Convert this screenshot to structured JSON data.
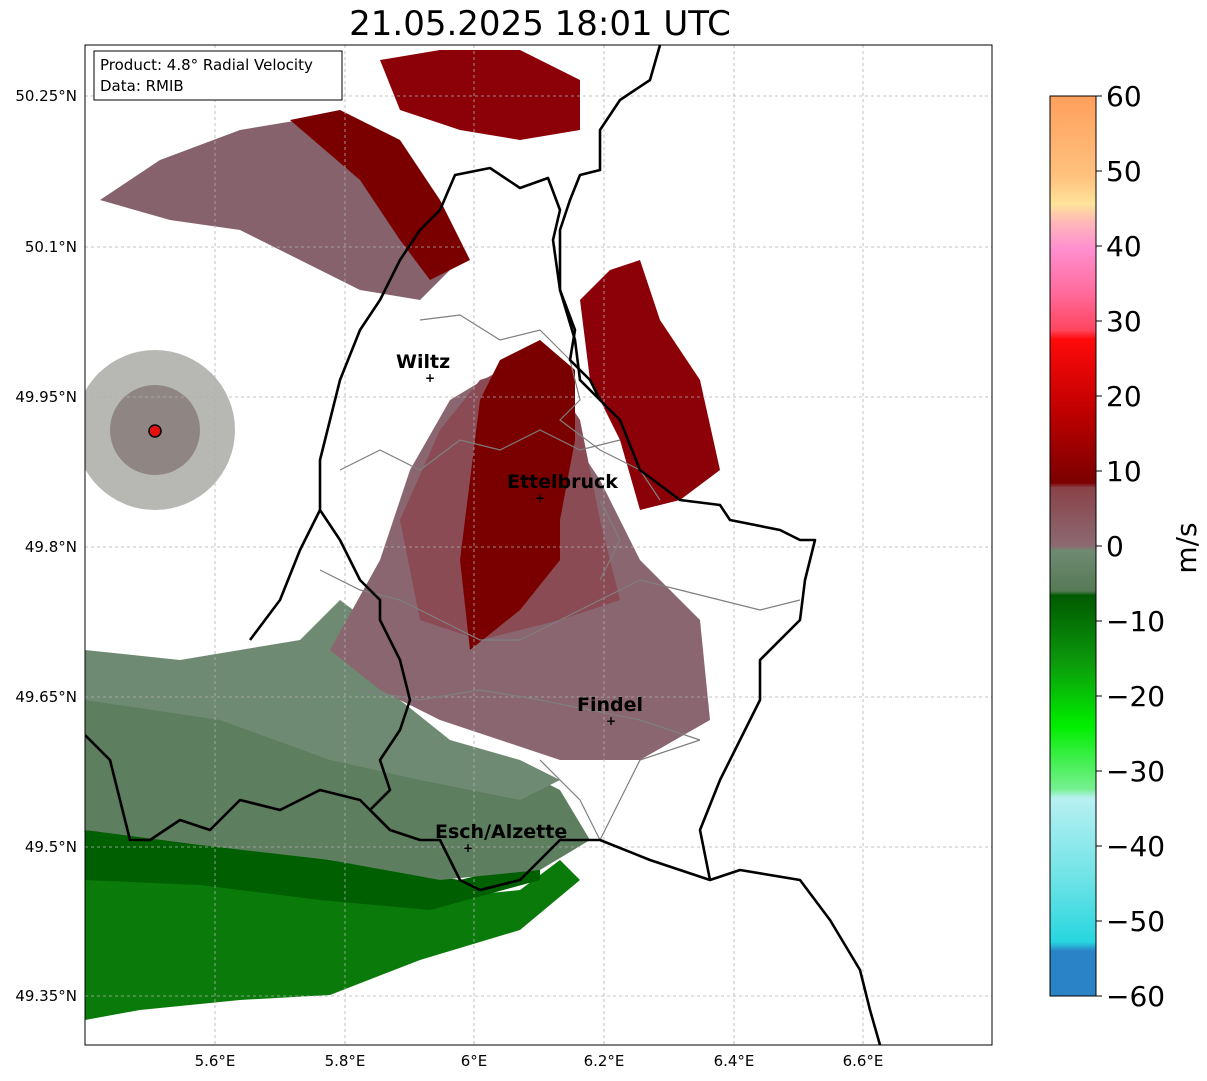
{
  "title": "21.05.2025 18:01 UTC",
  "info_box": {
    "product": "Product: 4.8° Radial Velocity",
    "data": "Data: RMIB"
  },
  "map": {
    "lon_range": [
      5.4,
      6.8
    ],
    "lat_range": [
      49.3,
      50.3
    ],
    "x_ticks": [
      "5.6°E",
      "5.8°E",
      "6°E",
      "6.2°E",
      "6.4°E",
      "6.6°E"
    ],
    "y_ticks": [
      "50.25°N",
      "50.1°N",
      "49.95°N",
      "49.8°N",
      "49.65°N",
      "49.5°N",
      "49.35°N"
    ],
    "grid": true,
    "radar_site": {
      "lon": 5.505,
      "lat": 49.915
    },
    "cities": [
      {
        "name": "Wiltz",
        "lon": 5.933,
        "lat": 49.966
      },
      {
        "name": "Ettelbruck",
        "lon": 6.1,
        "lat": 49.85
      },
      {
        "name": "Findel",
        "lon": 6.21,
        "lat": 49.627
      },
      {
        "name": "Esch/Alzette",
        "lon": 5.99,
        "lat": 49.498
      }
    ]
  },
  "colorbar": {
    "label": "m/s",
    "min": -60,
    "max": 60,
    "ticks": [
      "60",
      "50",
      "40",
      "30",
      "20",
      "10",
      "0",
      "−10",
      "−20",
      "−30",
      "−40",
      "−50",
      "−60"
    ],
    "colors": {
      "orange": "#ff9f5c",
      "yellow": "#ffe39a",
      "pink": "#ff8fd0",
      "red_bright": "#ff1a1a",
      "red_dark": "#7a0000",
      "mauve": "#8c5a64",
      "gray_green": "#6f8a72",
      "green_dark": "#006400",
      "green_bright": "#22ee22",
      "light_cyan": "#b8f0f2",
      "cyan": "#27d6e0",
      "blue": "#2a83c6"
    }
  },
  "legend": {
    "radar_marker_color": "#e41010"
  }
}
